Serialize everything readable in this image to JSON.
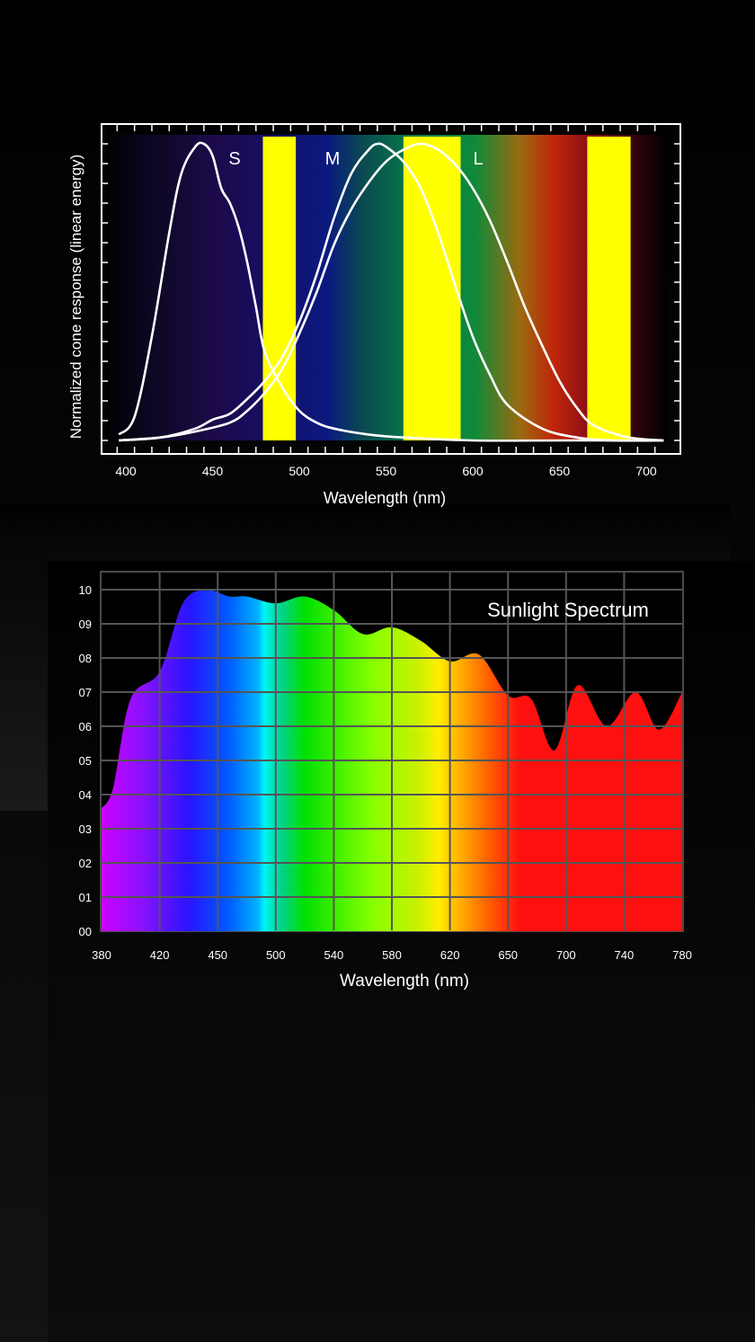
{
  "chart_data": [
    {
      "type": "line",
      "title": "",
      "xlabel": "Wavelength (nm)",
      "ylabel": "Normalized cone response (linear energy)",
      "xlim": [
        390,
        710
      ],
      "ylim": [
        0,
        1.03
      ],
      "x_ticks": [
        400,
        450,
        500,
        550,
        600,
        650,
        700
      ],
      "grid": false,
      "background": "visible spectrum gradient",
      "series": [
        {
          "name": "S",
          "x": [
            396,
            405,
            415,
            425,
            432,
            440,
            445,
            450,
            455,
            460,
            465,
            470,
            475,
            480,
            490,
            500,
            510,
            520,
            540,
            560,
            600,
            650,
            700,
            710
          ],
          "y": [
            0.02,
            0.08,
            0.35,
            0.7,
            0.9,
            0.99,
            1.0,
            0.96,
            0.85,
            0.8,
            0.72,
            0.6,
            0.45,
            0.3,
            0.18,
            0.1,
            0.06,
            0.04,
            0.02,
            0.01,
            0.0,
            0.0,
            0.0,
            0.0
          ]
        },
        {
          "name": "M",
          "x": [
            396,
            420,
            440,
            450,
            460,
            470,
            480,
            490,
            500,
            510,
            520,
            530,
            540,
            545,
            550,
            560,
            570,
            580,
            590,
            600,
            610,
            620,
            640,
            660,
            680,
            710
          ],
          "y": [
            0.0,
            0.01,
            0.04,
            0.07,
            0.09,
            0.14,
            0.2,
            0.28,
            0.4,
            0.56,
            0.75,
            0.9,
            0.98,
            1.0,
            0.99,
            0.94,
            0.85,
            0.7,
            0.52,
            0.35,
            0.22,
            0.12,
            0.04,
            0.01,
            0.0,
            0.0
          ]
        },
        {
          "name": "L",
          "x": [
            396,
            420,
            440,
            460,
            470,
            480,
            490,
            500,
            510,
            520,
            530,
            540,
            550,
            560,
            570,
            580,
            590,
            600,
            610,
            620,
            630,
            640,
            650,
            660,
            670,
            690,
            710
          ],
          "y": [
            0.0,
            0.01,
            0.03,
            0.06,
            0.1,
            0.16,
            0.24,
            0.36,
            0.5,
            0.66,
            0.78,
            0.87,
            0.94,
            0.98,
            1.0,
            0.98,
            0.93,
            0.85,
            0.74,
            0.6,
            0.45,
            0.32,
            0.2,
            0.11,
            0.05,
            0.01,
            0.0
          ]
        }
      ],
      "curve_labels": [
        "S",
        "M",
        "L"
      ],
      "highlight_bands": [
        {
          "from": 479,
          "to": 498,
          "color": "#ffff00"
        },
        {
          "from": 560,
          "to": 593,
          "color": "#ffff00"
        },
        {
          "from": 666,
          "to": 691,
          "color": "#ffff00"
        }
      ]
    },
    {
      "type": "area",
      "title": "Sunlight Spectrum",
      "xlabel": "Wavelength (nm)",
      "ylabel": "",
      "xlim": [
        380,
        780
      ],
      "ylim": [
        0,
        10.5
      ],
      "x_ticks": [
        "380",
        "420",
        "450",
        "500",
        "540",
        "580",
        "620",
        "650",
        "700",
        "740",
        "780"
      ],
      "y_ticks": [
        "00",
        "01",
        "02",
        "03",
        "04",
        "05",
        "06",
        "07",
        "08",
        "09",
        "10"
      ],
      "grid": true,
      "fill": "visible spectrum gradient",
      "x_index": [
        0,
        0.2,
        0.5,
        1.0,
        1.4,
        1.8,
        2.2,
        2.5,
        3.0,
        3.5,
        4.0,
        4.5,
        5.0,
        5.5,
        6.0,
        6.5,
        7.0,
        7.4,
        7.8,
        8.2,
        8.7,
        9.2,
        9.6,
        10
      ],
      "y": [
        3.6,
        4.2,
        6.8,
        7.6,
        9.6,
        10.0,
        9.8,
        9.8,
        9.6,
        9.8,
        9.4,
        8.7,
        8.9,
        8.5,
        7.9,
        8.1,
        6.9,
        6.8,
        5.3,
        7.2,
        6.0,
        7.0,
        5.9,
        7.0
      ]
    }
  ],
  "colors": {
    "background": "#000000",
    "band_yellow": "#ffff00",
    "curve": "#ffffff",
    "grid": "#555555"
  }
}
